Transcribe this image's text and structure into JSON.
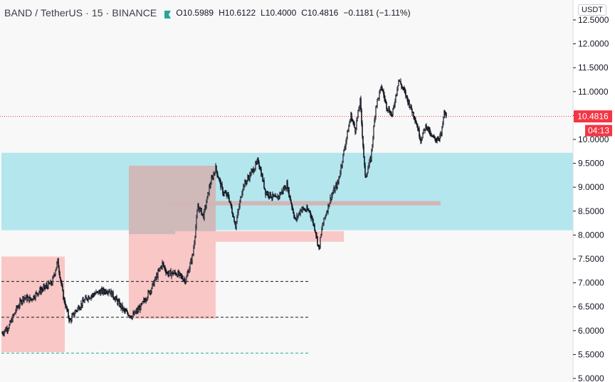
{
  "header": {
    "symbol": "BAND / TetherUS · 15 · BINANCE",
    "open_label": "O",
    "open": "10.5989",
    "high_label": "H",
    "high": "10.6122",
    "low_label": "L",
    "low": "10.4000",
    "close_label": "C",
    "close": "10.4816",
    "change": "−0.1181 (−1.11%)"
  },
  "currency_badge": "USDT",
  "price_tag": {
    "label": "10.4816",
    "value": 10.4816,
    "color": "#f23645"
  },
  "countdown_tag": "04:13",
  "colors": {
    "background": "#f8f8f8",
    "candles": "#131722",
    "zone_cyan": "#b4e6ee",
    "zone_red": "#f9c7c5",
    "zone_gray": "#c8b8b8",
    "price_line": "#f23645",
    "support_green": "#26a69a"
  },
  "chart_data": {
    "type": "candlestick",
    "series": [
      {
        "name": "",
        "source": "price path",
        "values": [
          {
            "bar": 0,
            "close": 5.95
          },
          {
            "bar": 10,
            "close": 6.1
          },
          {
            "bar": 20,
            "close": 6.45
          },
          {
            "bar": 30,
            "close": 6.7
          },
          {
            "bar": 40,
            "close": 6.65
          },
          {
            "bar": 50,
            "close": 6.8
          },
          {
            "bar": 60,
            "close": 6.9
          },
          {
            "bar": 70,
            "close": 7.0
          },
          {
            "bar": 78,
            "close": 7.45
          },
          {
            "bar": 86,
            "close": 6.7
          },
          {
            "bar": 95,
            "close": 6.2
          },
          {
            "bar": 105,
            "close": 6.45
          },
          {
            "bar": 120,
            "close": 6.7
          },
          {
            "bar": 135,
            "close": 6.8
          },
          {
            "bar": 150,
            "close": 6.85
          },
          {
            "bar": 160,
            "close": 6.65
          },
          {
            "bar": 172,
            "close": 6.4
          },
          {
            "bar": 183,
            "close": 6.3
          },
          {
            "bar": 195,
            "close": 6.5
          },
          {
            "bar": 210,
            "close": 6.9
          },
          {
            "bar": 225,
            "close": 7.4
          },
          {
            "bar": 232,
            "close": 7.2
          },
          {
            "bar": 245,
            "close": 7.2
          },
          {
            "bar": 258,
            "close": 7.05
          },
          {
            "bar": 268,
            "close": 7.6
          },
          {
            "bar": 275,
            "close": 8.6
          },
          {
            "bar": 283,
            "close": 8.4
          },
          {
            "bar": 292,
            "close": 9.05
          },
          {
            "bar": 300,
            "close": 9.4
          },
          {
            "bar": 310,
            "close": 8.9
          },
          {
            "bar": 318,
            "close": 8.8
          },
          {
            "bar": 328,
            "close": 8.2
          },
          {
            "bar": 338,
            "close": 9.0
          },
          {
            "bar": 350,
            "close": 9.3
          },
          {
            "bar": 360,
            "close": 9.55
          },
          {
            "bar": 370,
            "close": 8.9
          },
          {
            "bar": 385,
            "close": 8.75
          },
          {
            "bar": 400,
            "close": 9.05
          },
          {
            "bar": 412,
            "close": 8.3
          },
          {
            "bar": 420,
            "close": 8.55
          },
          {
            "bar": 432,
            "close": 8.5
          },
          {
            "bar": 440,
            "close": 8.1
          },
          {
            "bar": 445,
            "close": 7.7
          },
          {
            "bar": 450,
            "close": 8.2
          },
          {
            "bar": 462,
            "close": 8.8
          },
          {
            "bar": 472,
            "close": 9.1
          },
          {
            "bar": 482,
            "close": 9.9
          },
          {
            "bar": 490,
            "close": 10.5
          },
          {
            "bar": 496,
            "close": 10.2
          },
          {
            "bar": 503,
            "close": 10.8
          },
          {
            "bar": 510,
            "close": 9.2
          },
          {
            "bar": 518,
            "close": 9.6
          },
          {
            "bar": 525,
            "close": 10.7
          },
          {
            "bar": 533,
            "close": 11.1
          },
          {
            "bar": 540,
            "close": 10.7
          },
          {
            "bar": 548,
            "close": 10.5
          },
          {
            "bar": 557,
            "close": 11.25
          },
          {
            "bar": 565,
            "close": 11.0
          },
          {
            "bar": 573,
            "close": 10.7
          },
          {
            "bar": 580,
            "close": 10.45
          },
          {
            "bar": 588,
            "close": 10.0
          },
          {
            "bar": 596,
            "close": 10.3
          },
          {
            "bar": 603,
            "close": 10.05
          },
          {
            "bar": 610,
            "close": 10.0
          },
          {
            "bar": 617,
            "close": 10.1
          },
          {
            "bar": 621,
            "close": 10.55
          },
          {
            "bar": 624,
            "close": 10.4816
          }
        ]
      }
    ],
    "ylim": [
      5.0,
      12.7
    ],
    "y_ticks": [
      12.5,
      12.0,
      11.5,
      11.0,
      10.5,
      10.0,
      9.5,
      9.0,
      8.5,
      8.0,
      7.5,
      7.0,
      6.5,
      6.0,
      5.5,
      5.0
    ],
    "y_tick_labels": [
      "12.5000",
      "12.0000",
      "11.5000",
      "11.0000",
      "10.5000",
      "10.0000",
      "9.5000",
      "9.0000",
      "8.5000",
      "8.0000",
      "7.5000",
      "7.0000",
      "6.5000",
      "6.0000",
      "5.5000",
      "5.0000"
    ],
    "annotations": {
      "zones": [
        {
          "name": "cyan-zone",
          "y1": 8.1,
          "y2": 9.72,
          "color": "#b4e6ee"
        },
        {
          "name": "red-zone-left",
          "y1": 5.55,
          "y2": 7.55,
          "color": "#f9c7c5"
        },
        {
          "name": "red-zone-middle",
          "y1": 6.25,
          "y2": 9.45,
          "color": "#f9c7c5"
        },
        {
          "name": "gray-zone",
          "y1": 8.02,
          "y2": 9.45,
          "color": "#c9b6b6"
        },
        {
          "name": "gray-bar",
          "y1": 8.62,
          "y2": 8.71,
          "color": "#d2b6b6"
        },
        {
          "name": "red-bar",
          "y1": 7.86,
          "y2": 8.08,
          "color": "#f9c7c5"
        }
      ],
      "levels": [
        {
          "name": "level-dashed-upper",
          "y": 7.03,
          "style": "dashed",
          "color": "#131722"
        },
        {
          "name": "level-dashed-lower",
          "y": 6.28,
          "style": "dashed",
          "color": "#131722"
        },
        {
          "name": "level-dashed-green",
          "y": 5.53,
          "style": "dashed",
          "color": "#26a69a"
        },
        {
          "name": "last-price-line",
          "y": 10.4816,
          "style": "dotted",
          "color": "#f23645"
        }
      ]
    },
    "grid": false
  }
}
